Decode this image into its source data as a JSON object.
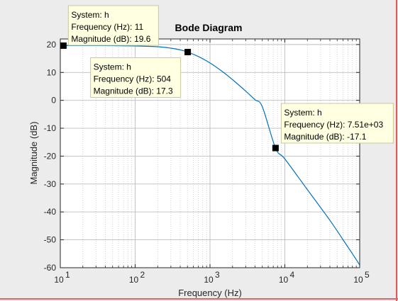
{
  "chart_data": {
    "type": "line",
    "title": "Bode Diagram",
    "xlabel": "Frequency  (Hz)",
    "ylabel": "Magnitude (dB)",
    "x_scale": "log",
    "xlim": [
      10,
      100000
    ],
    "ylim": [
      -60,
      22
    ],
    "x_ticks": [
      {
        "base": "10",
        "exp": "1"
      },
      {
        "base": "10",
        "exp": "2"
      },
      {
        "base": "10",
        "exp": "3"
      },
      {
        "base": "10",
        "exp": "4"
      },
      {
        "base": "10",
        "exp": "5"
      }
    ],
    "y_ticks": [
      "20",
      "10",
      "0",
      "-10",
      "-20",
      "-30",
      "-40",
      "-50",
      "-60"
    ],
    "grid": true,
    "series": [
      {
        "color": "#0072bd",
        "x": [
          10,
          30,
          100,
          200,
          300,
          400,
          504,
          700,
          1000,
          1500,
          2000,
          3000,
          4000,
          5000,
          7510,
          10000,
          20000,
          40000,
          60000,
          80000,
          100000
        ],
        "y": [
          19.6,
          19.6,
          19.5,
          19.2,
          18.7,
          18.1,
          17.3,
          15.7,
          13.4,
          10.1,
          7.4,
          3.3,
          0.2,
          -2.3,
          -17.1,
          -21.0,
          -32.0,
          -43.0,
          -50.0,
          -55.0,
          -59.0
        ]
      }
    ],
    "datatips": [
      {
        "x": 11,
        "y": 19.6,
        "system_label": "System: h",
        "freq_label": "Frequency (Hz): 11",
        "mag_label": "Magnitude (dB): 19.6",
        "placement": "top-left"
      },
      {
        "x": 504,
        "y": 17.3,
        "system_label": "System: h",
        "freq_label": "Frequency (Hz): 504",
        "mag_label": "Magnitude (dB): 17.3",
        "placement": "below-left"
      },
      {
        "x": 7510,
        "y": -17.1,
        "system_label": "System: h",
        "freq_label": "Frequency (Hz): 7.51e+03",
        "mag_label": "Magnitude (dB): -17.1",
        "placement": "above-right"
      }
    ]
  }
}
